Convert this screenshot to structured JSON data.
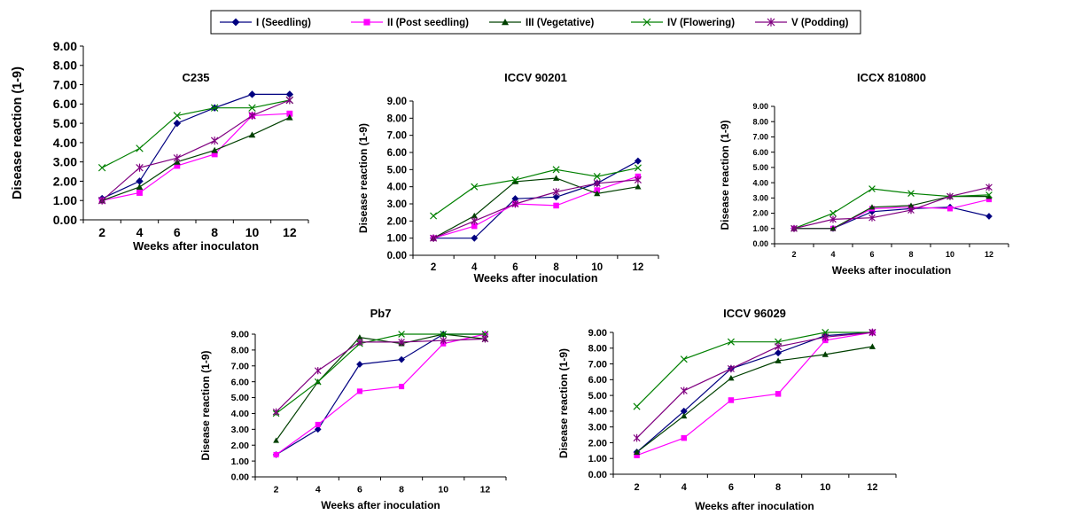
{
  "series_styles": [
    {
      "color": "#000080",
      "marker": "diamond"
    },
    {
      "color": "#FF00FF",
      "marker": "square"
    },
    {
      "color": "#004000",
      "marker": "triangle"
    },
    {
      "color": "#008000",
      "marker": "x"
    },
    {
      "color": "#800080",
      "marker": "star"
    }
  ],
  "legend": [
    "I (Seedling)",
    "II (Post seedling)",
    "III (Vegetative)",
    "IV (Flowering)",
    "V (Podding)"
  ],
  "chart_data": [
    {
      "type": "line",
      "title": "C235",
      "xlabel": "Weeks after inoculaton",
      "ylabel": "Disease reaction (1-9)",
      "x": [
        "2",
        "4",
        "6",
        "8",
        "10",
        "12"
      ],
      "y_ticks": [
        "0.00",
        "1.00",
        "2.00",
        "3.00",
        "4.00",
        "5.00",
        "6.00",
        "7.00",
        "8.00",
        "9.00"
      ],
      "ylim": [
        0,
        9
      ],
      "series": [
        {
          "name": "I (Seedling)",
          "values": [
            1.1,
            2.0,
            5.0,
            5.8,
            6.5,
            6.5
          ]
        },
        {
          "name": "II (Post seedling)",
          "values": [
            1.0,
            1.4,
            2.8,
            3.4,
            5.4,
            5.5
          ]
        },
        {
          "name": "III (Vegetative)",
          "values": [
            1.0,
            1.7,
            3.0,
            3.6,
            4.4,
            5.3
          ]
        },
        {
          "name": "IV (Flowering)",
          "values": [
            2.7,
            3.7,
            5.4,
            5.8,
            5.8,
            6.2
          ]
        },
        {
          "name": "V (Podding)",
          "values": [
            1.0,
            2.7,
            3.2,
            4.1,
            5.4,
            6.2
          ]
        }
      ]
    },
    {
      "type": "line",
      "title": "ICCV 90201",
      "xlabel": "Weeks after inoculation",
      "ylabel": "Disease reaction (1-9)",
      "x": [
        "2",
        "4",
        "6",
        "8",
        "10",
        "12"
      ],
      "y_ticks": [
        "0.00",
        "1.00",
        "2.00",
        "3.00",
        "4.00",
        "5.00",
        "6.00",
        "7.00",
        "8.00",
        "9.00"
      ],
      "ylim": [
        0,
        9
      ],
      "series": [
        {
          "name": "I (Seedling)",
          "values": [
            1.0,
            1.0,
            3.3,
            3.4,
            4.2,
            5.5
          ]
        },
        {
          "name": "II (Post seedling)",
          "values": [
            1.0,
            1.7,
            3.0,
            2.9,
            3.8,
            4.6
          ]
        },
        {
          "name": "III (Vegetative)",
          "values": [
            1.0,
            2.3,
            4.3,
            4.5,
            3.6,
            4.0
          ]
        },
        {
          "name": "IV (Flowering)",
          "values": [
            2.3,
            4.0,
            4.4,
            5.0,
            4.6,
            5.1
          ]
        },
        {
          "name": "V (Podding)",
          "values": [
            1.0,
            2.0,
            3.0,
            3.7,
            4.2,
            4.4
          ]
        }
      ]
    },
    {
      "type": "line",
      "title": "ICCX 810800",
      "xlabel": "Weeks after inoculation",
      "ylabel": "Disease reaction (1-9)",
      "x": [
        "2",
        "4",
        "6",
        "8",
        "10",
        "12"
      ],
      "y_ticks": [
        "0.00",
        "1.00",
        "2.00",
        "3.00",
        "4.00",
        "5.00",
        "6.00",
        "7.00",
        "8.00",
        "9.00"
      ],
      "ylim": [
        0,
        9
      ],
      "series": [
        {
          "name": "I (Seedling)",
          "values": [
            1.0,
            1.0,
            2.1,
            2.3,
            2.4,
            1.8
          ]
        },
        {
          "name": "II (Post seedling)",
          "values": [
            1.0,
            1.0,
            2.3,
            2.4,
            2.3,
            2.9
          ]
        },
        {
          "name": "III (Vegetative)",
          "values": [
            1.0,
            1.0,
            2.4,
            2.5,
            3.1,
            3.1
          ]
        },
        {
          "name": "IV (Flowering)",
          "values": [
            1.0,
            2.0,
            3.6,
            3.3,
            3.1,
            3.2
          ]
        },
        {
          "name": "V (Podding)",
          "values": [
            1.0,
            1.6,
            1.7,
            2.2,
            3.1,
            3.7
          ]
        }
      ]
    },
    {
      "type": "line",
      "title": "Pb7",
      "xlabel": "Weeks after inoculation",
      "ylabel": "Disease reaction (1-9)",
      "x": [
        "2",
        "4",
        "6",
        "8",
        "10",
        "12"
      ],
      "y_ticks": [
        "0.00",
        "1.00",
        "2.00",
        "3.00",
        "4.00",
        "5.00",
        "6.00",
        "7.00",
        "8.00",
        "9.00"
      ],
      "ylim": [
        0,
        9
      ],
      "series": [
        {
          "name": "I (Seedling)",
          "values": [
            1.4,
            3.0,
            7.1,
            7.4,
            9.0,
            9.0
          ]
        },
        {
          "name": "II (Post seedling)",
          "values": [
            1.4,
            3.3,
            5.4,
            5.7,
            8.4,
            9.0
          ]
        },
        {
          "name": "III (Vegetative)",
          "values": [
            2.3,
            6.0,
            8.8,
            8.4,
            9.0,
            8.7
          ]
        },
        {
          "name": "IV (Flowering)",
          "values": [
            4.0,
            6.0,
            8.4,
            9.0,
            9.0,
            9.0
          ]
        },
        {
          "name": "V (Podding)",
          "values": [
            4.1,
            6.7,
            8.5,
            8.5,
            8.6,
            8.7
          ]
        }
      ]
    },
    {
      "type": "line",
      "title": "ICCV 96029",
      "xlabel": "Weeks after inoculation",
      "ylabel": "Disease reaction (1-9)",
      "x": [
        "2",
        "4",
        "6",
        "8",
        "10",
        "12"
      ],
      "y_ticks": [
        "0.00",
        "1.00",
        "2.00",
        "3.00",
        "4.00",
        "5.00",
        "6.00",
        "7.00",
        "8.00",
        "9.00"
      ],
      "ylim": [
        0,
        9
      ],
      "series": [
        {
          "name": "I (Seedling)",
          "values": [
            1.4,
            4.0,
            6.7,
            7.7,
            8.8,
            9.0
          ]
        },
        {
          "name": "II (Post seedling)",
          "values": [
            1.2,
            2.3,
            4.7,
            5.1,
            8.5,
            9.0
          ]
        },
        {
          "name": "III (Vegetative)",
          "values": [
            1.4,
            3.7,
            6.1,
            7.2,
            7.6,
            8.1
          ]
        },
        {
          "name": "IV (Flowering)",
          "values": [
            4.3,
            7.3,
            8.4,
            8.4,
            9.0,
            9.0
          ]
        },
        {
          "name": "V (Podding)",
          "values": [
            2.3,
            5.3,
            6.7,
            8.1,
            8.7,
            9.0
          ]
        }
      ]
    }
  ]
}
